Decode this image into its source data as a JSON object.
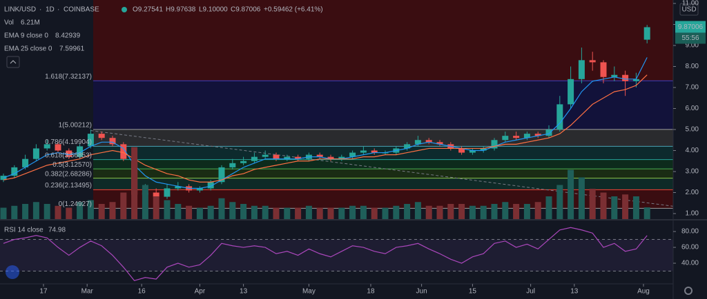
{
  "header": {
    "symbol": "LINK/USD",
    "interval": "1D",
    "exchange": "COINBASE",
    "open": "O9.27541",
    "high": "H9.97638",
    "low": "L9.10000",
    "close": "C9.87006",
    "change": "+0.59462 (+6.41%)"
  },
  "chart_data": [
    {
      "type": "candlestick",
      "categories": [
        null,
        null,
        null,
        null,
        null,
        null,
        null,
        null,
        null,
        null,
        null,
        null,
        null,
        null,
        null,
        null,
        null,
        null,
        null,
        null,
        null,
        null,
        null,
        null,
        null,
        null,
        null,
        null,
        null,
        null,
        null,
        null,
        null,
        null,
        null,
        null,
        null,
        null,
        null,
        null,
        null,
        null,
        null,
        null,
        null,
        null,
        null,
        null,
        null,
        null,
        null,
        null,
        null,
        null,
        null,
        null,
        null,
        null,
        null,
        null
      ],
      "open": [
        2.6,
        2.8,
        3.2,
        3.6,
        4.1,
        4.3,
        4.0,
        3.7,
        4.2,
        4.8,
        4.6,
        4.3,
        3.6,
        1.9,
        2.0,
        1.8,
        2.2,
        2.3,
        2.1,
        2.2,
        2.5,
        3.2,
        3.4,
        3.5,
        3.7,
        3.8,
        3.6,
        3.7,
        3.6,
        3.8,
        3.7,
        3.6,
        3.7,
        3.9,
        4.0,
        3.9,
        3.9,
        4.1,
        4.3,
        4.5,
        4.4,
        4.3,
        4.1,
        3.9,
        4.0,
        4.1,
        4.5,
        4.7,
        4.6,
        4.8,
        4.7,
        5.0,
        6.2,
        7.4,
        8.3,
        8.2,
        7.5,
        7.6,
        7.3,
        9.27541
      ],
      "high": [
        2.9,
        3.3,
        3.8,
        4.3,
        4.5,
        4.4,
        4.1,
        4.3,
        5.0,
        4.9,
        4.7,
        4.4,
        3.7,
        2.4,
        2.2,
        2.4,
        2.5,
        2.4,
        2.3,
        2.6,
        3.3,
        3.6,
        3.7,
        3.9,
        4.0,
        3.9,
        3.8,
        3.8,
        3.9,
        3.9,
        3.8,
        3.8,
        4.0,
        4.2,
        4.1,
        4.0,
        4.2,
        4.4,
        4.7,
        4.6,
        4.5,
        4.4,
        4.2,
        4.1,
        4.2,
        4.6,
        4.9,
        4.9,
        4.9,
        4.9,
        5.2,
        6.6,
        8.0,
        8.9,
        8.7,
        8.3,
        8.0,
        7.8,
        7.7,
        9.97638
      ],
      "low": [
        2.5,
        2.7,
        3.1,
        3.5,
        4.0,
        3.9,
        3.6,
        3.6,
        4.1,
        4.5,
        4.2,
        3.5,
        1.7,
        1.8,
        1.7,
        1.7,
        2.1,
        2.0,
        2.0,
        2.1,
        2.4,
        3.1,
        3.3,
        3.4,
        3.6,
        3.5,
        3.5,
        3.5,
        3.5,
        3.6,
        3.5,
        3.5,
        3.6,
        3.8,
        3.8,
        3.8,
        3.8,
        4.0,
        4.2,
        4.3,
        4.2,
        4.0,
        3.8,
        3.8,
        3.9,
        4.0,
        4.4,
        4.5,
        4.5,
        4.6,
        4.6,
        4.9,
        6.0,
        7.2,
        7.8,
        7.2,
        7.3,
        6.6,
        7.0,
        9.1
      ],
      "close": [
        2.8,
        3.2,
        3.6,
        4.1,
        4.3,
        4.0,
        3.7,
        4.2,
        4.8,
        4.6,
        4.3,
        3.6,
        1.9,
        2.0,
        1.8,
        2.2,
        2.3,
        2.1,
        2.2,
        2.5,
        3.2,
        3.4,
        3.5,
        3.7,
        3.8,
        3.6,
        3.7,
        3.6,
        3.8,
        3.7,
        3.6,
        3.7,
        3.9,
        4.0,
        3.9,
        3.9,
        4.1,
        4.3,
        4.5,
        4.4,
        4.3,
        4.1,
        3.9,
        4.0,
        4.1,
        4.5,
        4.7,
        4.6,
        4.8,
        4.7,
        5.0,
        6.2,
        7.4,
        8.3,
        8.2,
        7.5,
        7.6,
        7.3,
        7.4,
        9.87006
      ],
      "up_color": "#26a69a",
      "down_color": "#ef5350",
      "series": [
        {
          "name": "EMA 9 close 0",
          "color": "#2196f3",
          "values": [
            2.7,
            2.9,
            3.2,
            3.5,
            3.8,
            3.9,
            3.8,
            3.9,
            4.2,
            4.4,
            4.4,
            4.1,
            3.3,
            2.8,
            2.5,
            2.4,
            2.3,
            2.2,
            2.2,
            2.3,
            2.6,
            2.9,
            3.2,
            3.4,
            3.6,
            3.6,
            3.6,
            3.6,
            3.7,
            3.7,
            3.6,
            3.6,
            3.7,
            3.8,
            3.9,
            3.9,
            4.0,
            4.1,
            4.3,
            4.4,
            4.3,
            4.2,
            4.1,
            4.0,
            4.0,
            4.2,
            4.4,
            4.5,
            4.6,
            4.7,
            4.8,
            5.3,
            6.0,
            6.8,
            7.3,
            7.4,
            7.5,
            7.4,
            7.4,
            8.42939
          ]
        },
        {
          "name": "EMA 25 close 0",
          "color": "#ff7043",
          "values": [
            2.6,
            2.7,
            2.9,
            3.1,
            3.3,
            3.4,
            3.5,
            3.6,
            3.8,
            3.9,
            4.0,
            3.9,
            3.6,
            3.3,
            3.1,
            2.9,
            2.8,
            2.6,
            2.5,
            2.5,
            2.6,
            2.8,
            2.9,
            3.1,
            3.2,
            3.3,
            3.4,
            3.5,
            3.5,
            3.6,
            3.6,
            3.6,
            3.6,
            3.7,
            3.7,
            3.8,
            3.8,
            3.9,
            4.0,
            4.1,
            4.1,
            4.1,
            4.1,
            4.1,
            4.1,
            4.2,
            4.3,
            4.3,
            4.4,
            4.5,
            4.6,
            4.8,
            5.2,
            5.7,
            6.2,
            6.5,
            6.8,
            6.9,
            7.1,
            7.59961
          ]
        }
      ],
      "levels": [
        {
          "label": "1.618(7.32137)",
          "value": 7.32137,
          "color": "#3f3fbf",
          "band": "#3a0d11"
        },
        {
          "label": "1(5.00212)",
          "value": 5.00212,
          "color": "#9e9e9e",
          "band": "#12123a"
        },
        {
          "label": "0.786(4.19904)",
          "value": 4.19904,
          "color": "#4aa3b5",
          "band": "#2a2b2e"
        },
        {
          "label": "0.618(3.56853)",
          "value": 3.56853,
          "color": "#26a69a",
          "band": "#0d2a2d"
        },
        {
          "label": "0.5(3.12570)",
          "value": 3.1257,
          "color": "#4caf50",
          "band": "#0d2b1c"
        },
        {
          "label": "0.382(2.68286)",
          "value": 2.68286,
          "color": "#8bc34a",
          "band": "#1a2c14"
        },
        {
          "label": "0.236(2.13495)",
          "value": 2.13495,
          "color": "#f44336",
          "band": "#0f2a27"
        },
        {
          "label": "0(1.24927)",
          "value": 1.24927,
          "color": "#9e9e9e",
          "band": "#3a0d11"
        }
      ],
      "trend_line": {
        "x": [
          8,
          61.4
        ],
        "values": [
          4.95,
          1.35
        ],
        "color": "#787b86"
      },
      "currency": "USD",
      "countdown": "55:56",
      "ylim": [
        1,
        11
      ],
      "yticks": [
        {
          "value": 1,
          "label": "1.00"
        },
        {
          "value": 2,
          "label": "2.00"
        },
        {
          "value": 3,
          "label": "3.00"
        },
        {
          "value": 4,
          "label": "4.00"
        },
        {
          "value": 5,
          "label": "5.00"
        },
        {
          "value": 6,
          "label": "6.00"
        },
        {
          "value": 7,
          "label": "7.00"
        },
        {
          "value": 8,
          "label": "8.00"
        },
        {
          "value": 9,
          "label": "9.00"
        },
        {
          "value": 10,
          "label": "10.00"
        },
        {
          "value": 11,
          "label": "11.00"
        }
      ]
    },
    {
      "type": "bar",
      "name": "Vol",
      "value_label": "6.21M",
      "values": [
        6,
        7,
        8,
        9,
        8,
        7,
        6,
        9,
        10,
        8,
        9,
        14,
        38,
        18,
        12,
        10,
        8,
        7,
        6,
        7,
        11,
        9,
        8,
        7,
        7,
        6,
        6,
        6,
        7,
        6,
        6,
        6,
        7,
        7,
        6,
        6,
        7,
        8,
        9,
        7,
        7,
        8,
        8,
        7,
        7,
        8,
        9,
        8,
        8,
        9,
        12,
        18,
        26,
        22,
        16,
        14,
        12,
        13,
        12,
        6.21
      ],
      "ylim": [
        0,
        40
      ]
    },
    {
      "type": "line",
      "name": "RSI 14 close",
      "color": "#ab47bc",
      "values": [
        65,
        70,
        72,
        75,
        72,
        60,
        50,
        60,
        68,
        62,
        50,
        35,
        18,
        22,
        20,
        35,
        40,
        35,
        38,
        50,
        65,
        62,
        60,
        62,
        60,
        52,
        55,
        50,
        58,
        52,
        48,
        55,
        62,
        60,
        55,
        52,
        60,
        62,
        65,
        58,
        52,
        45,
        40,
        48,
        52,
        65,
        68,
        60,
        64,
        58,
        70,
        82,
        85,
        82,
        78,
        60,
        65,
        55,
        58,
        74.98
      ],
      "ylim": [
        15.7,
        89.6
      ],
      "yticks": [
        {
          "value": 40,
          "label": "40.00"
        },
        {
          "value": 60,
          "label": "60.00"
        },
        {
          "value": 80,
          "label": "80.00"
        }
      ],
      "bands": [
        30,
        70
      ],
      "xticks": [
        {
          "value": 3.67,
          "label": "17"
        },
        {
          "value": 7.67,
          "label": "Mar"
        },
        {
          "value": 12.67,
          "label": "16"
        },
        {
          "value": 18,
          "label": "Apr"
        },
        {
          "value": 22,
          "label": "13"
        },
        {
          "value": 28,
          "label": "May"
        },
        {
          "value": 33.67,
          "label": "18"
        },
        {
          "value": 38.33,
          "label": "Jun"
        },
        {
          "value": 43,
          "label": "15"
        },
        {
          "value": 48.33,
          "label": "Jul"
        },
        {
          "value": 52.33,
          "label": "13"
        },
        {
          "value": 58.67,
          "label": "Aug"
        }
      ]
    }
  ]
}
